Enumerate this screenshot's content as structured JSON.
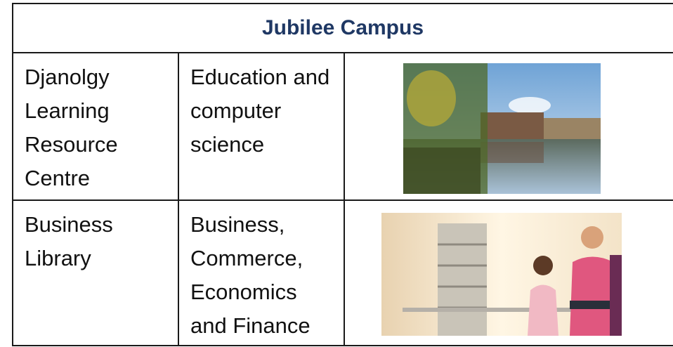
{
  "table": {
    "title": "Jubilee Campus",
    "rows": [
      [
        "Djanolgy Learning Resource Centre",
        "Education and computer science"
      ],
      [
        "Business Library",
        "Business, Commerce, Economics and Finance"
      ]
    ]
  }
}
